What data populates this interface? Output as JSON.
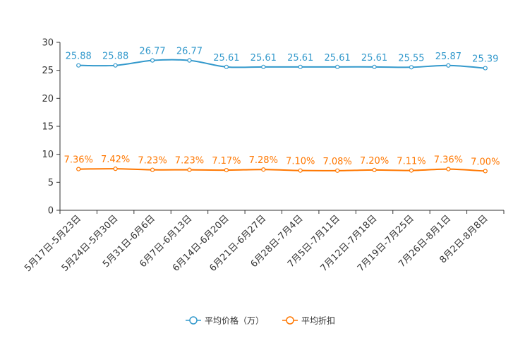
{
  "chart_data": {
    "type": "line",
    "categories": [
      "5月17日-5月23日",
      "5月24日-5月30日",
      "5月31日-6月6日",
      "6月7日-6月13日",
      "6月14日-6月20日",
      "6月21日-6月27日",
      "6月28日-7月4日",
      "7月5日-7月11日",
      "7月12日-7月18日",
      "7月19日-7月25日",
      "7月26日-8月1日",
      "8月2日-8月8日"
    ],
    "ylim": [
      0,
      30
    ],
    "yticks": [
      0,
      5,
      10,
      15,
      20,
      25,
      30
    ],
    "series": [
      {
        "name": "平均价格（万）",
        "color": "#3399cc",
        "values": [
          25.88,
          25.88,
          26.77,
          26.77,
          25.61,
          25.61,
          25.61,
          25.61,
          25.61,
          25.55,
          25.87,
          25.39
        ],
        "labels": [
          "25.88",
          "25.88",
          "26.77",
          "26.77",
          "25.61",
          "25.61",
          "25.61",
          "25.61",
          "25.61",
          "25.55",
          "25.87",
          "25.39"
        ]
      },
      {
        "name": "平均折扣",
        "color": "#ff7700",
        "values": [
          7.36,
          7.42,
          7.23,
          7.23,
          7.17,
          7.28,
          7.1,
          7.08,
          7.2,
          7.11,
          7.36,
          7.0
        ],
        "labels": [
          "7.36%",
          "7.42%",
          "7.23%",
          "7.23%",
          "7.17%",
          "7.28%",
          "7.10%",
          "7.08%",
          "7.20%",
          "7.11%",
          "7.36%",
          "7.00%"
        ]
      }
    ],
    "legend_position": "bottom-center"
  }
}
